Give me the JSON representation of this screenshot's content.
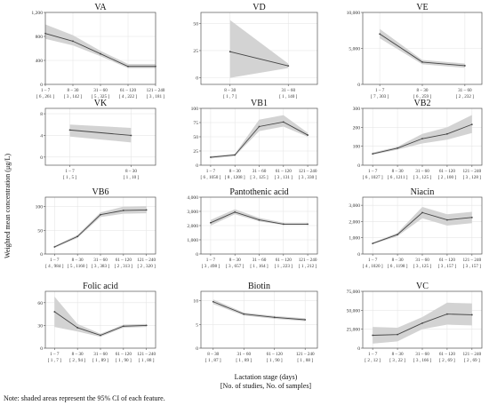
{
  "figure": {
    "ylabel": "Weighted mean concentration (μg/L)",
    "xlabel_line1": "Lactation stage (days)",
    "xlabel_line2": "[No. of studies, No. of samples]",
    "note": "Note: shaded areas represent the 95% CI of each feature.",
    "colors": {
      "line": "#444444",
      "band": "#d3d3d3",
      "grid": "#e6e6e6",
      "panel_border": "#555555"
    }
  },
  "chart_data": [
    {
      "type": "line",
      "title": "VA",
      "categories": [
        "1 – 7",
        "8 – 30",
        "31 – 60",
        "61 – 120",
        "121 – 240"
      ],
      "counts": [
        "[ 6 , 261 ]",
        "[ 3 , 142 ]",
        "[ 5 , 325 ]",
        "[ 4 , 222 ]",
        "[ 3 , 181 ]"
      ],
      "x": [
        1,
        2,
        3,
        4,
        5
      ],
      "xlim": [
        1,
        5
      ],
      "y": [
        850,
        720,
        510,
        300,
        300
      ],
      "lower": [
        760,
        650,
        470,
        270,
        270
      ],
      "upper": [
        1000,
        820,
        560,
        340,
        340
      ],
      "ylim": [
        0,
        1200
      ],
      "yticks": [
        0,
        400,
        800,
        1200
      ],
      "ytick_labels": [
        "0",
        "400",
        "800",
        "1,200"
      ]
    },
    {
      "type": "line",
      "title": "VD",
      "categories": [
        "8 – 30",
        "31 – 60"
      ],
      "counts": [
        "[ 1 , 7 ]",
        "[ 1 , 140 ]"
      ],
      "x": [
        2,
        3
      ],
      "xlim": [
        1.5,
        3.5
      ],
      "y": [
        24,
        11
      ],
      "lower": [
        0,
        9
      ],
      "upper": [
        53,
        13
      ],
      "ylim": [
        -6,
        60
      ],
      "yticks": [
        0,
        25,
        50
      ],
      "ytick_labels": [
        "0",
        "25",
        "50"
      ]
    },
    {
      "type": "line",
      "title": "VE",
      "categories": [
        "1 – 7",
        "8 – 30",
        "31 – 60"
      ],
      "counts": [
        "[ 7 , 303 ]",
        "[ 6 , 259 ]",
        "[ 2 , 232 ]"
      ],
      "x": [
        1,
        2,
        3
      ],
      "xlim": [
        0.6,
        3.4
      ],
      "y": [
        7000,
        3100,
        2600
      ],
      "lower": [
        6400,
        2800,
        2300
      ],
      "upper": [
        7700,
        3400,
        2900
      ],
      "ylim": [
        0,
        10000
      ],
      "yticks": [
        0,
        5000,
        10000
      ],
      "ytick_labels": [
        "0",
        "5,000",
        "10,000"
      ]
    },
    {
      "type": "line",
      "title": "VK",
      "categories": [
        "1 – 7",
        "8 – 30"
      ],
      "counts": [
        "[ 1 , 5 ]",
        "[ 1 , 10 ]"
      ],
      "x": [
        1,
        2
      ],
      "xlim": [
        0.6,
        2.4
      ],
      "y": [
        5.0,
        4.0
      ],
      "lower": [
        3.8,
        2.7
      ],
      "upper": [
        6.0,
        5.4
      ],
      "ylim": [
        -1.5,
        9
      ],
      "yticks": [
        0,
        4,
        8
      ],
      "ytick_labels": [
        "0",
        "4",
        "8"
      ]
    },
    {
      "type": "line",
      "title": "VB1",
      "categories": [
        "1 – 7",
        "8 – 30",
        "31 – 60",
        "61 – 120",
        "121 – 240"
      ],
      "counts": [
        "[ 6 , 1050 ]",
        "[ 8 , 1208 ]",
        "[ 3 , 125 ]",
        "[ 3 , 131 ]",
        "[ 3 , 330 ]"
      ],
      "x": [
        1,
        2,
        3,
        4,
        5
      ],
      "xlim": [
        0.6,
        5.4
      ],
      "y": [
        14,
        18,
        68,
        76,
        53
      ],
      "lower": [
        12,
        16,
        60,
        68,
        50
      ],
      "upper": [
        16,
        20,
        80,
        88,
        57
      ],
      "ylim": [
        0,
        100
      ],
      "yticks": [
        0,
        25,
        50,
        75,
        100
      ],
      "ytick_labels": [
        "0",
        "25",
        "50",
        "75",
        "100"
      ]
    },
    {
      "type": "line",
      "title": "VB2",
      "categories": [
        "1 – 7",
        "8 – 30",
        "31 – 60",
        "61 – 120",
        "121 – 240"
      ],
      "counts": [
        "[ 6 , 1027 ]",
        "[ 6 , 1211 ]",
        "[ 3 , 125 ]",
        "[ 2 , 100 ]",
        "[ 3 , 128 ]"
      ],
      "x": [
        1,
        2,
        3,
        4,
        5
      ],
      "xlim": [
        0.6,
        5.4
      ],
      "y": [
        60,
        90,
        140,
        165,
        215
      ],
      "lower": [
        55,
        82,
        115,
        135,
        170
      ],
      "upper": [
        66,
        98,
        165,
        200,
        265
      ],
      "ylim": [
        0,
        300
      ],
      "yticks": [
        0,
        100,
        200,
        300
      ],
      "ytick_labels": [
        "0",
        "100",
        "200",
        "300"
      ]
    },
    {
      "type": "line",
      "title": "VB6",
      "categories": [
        "1 – 7",
        "8 – 30",
        "31 – 60",
        "61 – 120",
        "121 – 240"
      ],
      "counts": [
        "[ 4 , 984 ]",
        "[ 5 , 1160 ]",
        "[ 3 , 383 ]",
        "[ 2 , 313 ]",
        "[ 2 , 320 ]"
      ],
      "x": [
        1,
        2,
        3,
        4,
        5
      ],
      "xlim": [
        0.6,
        5.4
      ],
      "y": [
        15,
        37,
        83,
        92,
        93
      ],
      "lower": [
        13,
        34,
        78,
        85,
        86
      ],
      "upper": [
        17,
        40,
        88,
        100,
        101
      ],
      "ylim": [
        0,
        120
      ],
      "yticks": [
        0,
        50,
        100
      ],
      "ytick_labels": [
        "0",
        "50",
        "100"
      ]
    },
    {
      "type": "line",
      "title": "Pantothenic acid",
      "categories": [
        "1 – 7",
        "8 – 30",
        "31 – 60",
        "61 – 120",
        "121 – 240"
      ],
      "counts": [
        "[ 3 , 498 ]",
        "[ 3 , 657 ]",
        "[ 1 , 164 ]",
        "[ 1 , 223 ]",
        "[ 1 , 212 ]"
      ],
      "x": [
        1,
        2,
        3,
        4,
        5
      ],
      "xlim": [
        0.6,
        5.4
      ],
      "y": [
        2200,
        2950,
        2400,
        2100,
        2100
      ],
      "lower": [
        2000,
        2800,
        2300,
        2050,
        2050
      ],
      "upper": [
        2400,
        3150,
        2550,
        2200,
        2200
      ],
      "ylim": [
        0,
        4000
      ],
      "yticks": [
        0,
        1000,
        2000,
        3000,
        4000
      ],
      "ytick_labels": [
        "0",
        "1,000",
        "2,000",
        "3,000",
        "4,000"
      ]
    },
    {
      "type": "line",
      "title": "Niacin",
      "categories": [
        "1 – 7",
        "8 – 30",
        "31 – 60",
        "61 – 120",
        "121 – 240"
      ],
      "counts": [
        "[ 4 , 1020 ]",
        "[ 6 , 1198 ]",
        "[ 3 , 125 ]",
        "[ 3 , 157 ]",
        "[ 3 , 157 ]"
      ],
      "x": [
        1,
        2,
        3,
        4,
        5
      ],
      "xlim": [
        0.6,
        5.4
      ],
      "y": [
        650,
        1200,
        2550,
        2100,
        2250
      ],
      "lower": [
        600,
        1100,
        2200,
        1750,
        1900
      ],
      "upper": [
        700,
        1300,
        2900,
        2450,
        2600
      ],
      "ylim": [
        0,
        3500
      ],
      "yticks": [
        0,
        1000,
        2000,
        3000
      ],
      "ytick_labels": [
        "0",
        "1,000",
        "2,000",
        "3,000"
      ]
    },
    {
      "type": "line",
      "title": "Folic acid",
      "categories": [
        "1 – 7",
        "8 – 30",
        "31 – 60",
        "61 – 120",
        "121 – 240"
      ],
      "counts": [
        "[ 1 , 7 ]",
        "[ 2 , 94 ]",
        "[ 1 , 89 ]",
        "[ 1 , 90 ]",
        "[ 1 , 88 ]"
      ],
      "x": [
        1,
        2,
        3,
        4,
        5
      ],
      "xlim": [
        0.6,
        5.4
      ],
      "y": [
        48,
        27,
        17,
        29,
        30
      ],
      "lower": [
        28,
        22,
        15,
        27,
        28
      ],
      "upper": [
        68,
        32,
        19,
        31,
        32
      ],
      "ylim": [
        0,
        75
      ],
      "yticks": [
        0,
        30,
        60
      ],
      "ytick_labels": [
        "0",
        "30",
        "60"
      ]
    },
    {
      "type": "line",
      "title": "Biotin",
      "categories": [
        "8 – 30",
        "31 – 60",
        "61 – 120",
        "121 – 240"
      ],
      "counts": [
        "[ 1 , 87 ]",
        "[ 1 , 89 ]",
        "[ 1 , 90 ]",
        "[ 1 , 88 ]"
      ],
      "x": [
        2,
        3,
        4,
        5
      ],
      "xlim": [
        1.6,
        5.4
      ],
      "y": [
        9.8,
        7.2,
        6.5,
        6.0
      ],
      "lower": [
        9.3,
        6.9,
        6.2,
        5.7
      ],
      "upper": [
        10.3,
        7.5,
        6.8,
        6.3
      ],
      "ylim": [
        0,
        12
      ],
      "yticks": [
        0,
        5,
        10
      ],
      "ytick_labels": [
        "0",
        "5",
        "10"
      ]
    },
    {
      "type": "line",
      "title": "VC",
      "categories": [
        "1 – 7",
        "8 – 30",
        "31 – 60",
        "61 – 120",
        "121 – 240"
      ],
      "counts": [
        "[ 2 , 12 ]",
        "[ 3 , 22 ]",
        "[ 3 , 166 ]",
        "[ 2 , 69 ]",
        "[ 2 , 69 ]"
      ],
      "x": [
        1,
        2,
        3,
        4,
        5
      ],
      "xlim": [
        0.6,
        5.4
      ],
      "y": [
        17000,
        18000,
        33000,
        45000,
        44000
      ],
      "lower": [
        6000,
        9000,
        25000,
        31000,
        30000
      ],
      "upper": [
        28000,
        27000,
        41000,
        60000,
        59000
      ],
      "ylim": [
        0,
        75000
      ],
      "yticks": [
        0,
        25000,
        50000,
        75000
      ],
      "ytick_labels": [
        "0",
        "25,000",
        "50,000",
        "75,000"
      ]
    }
  ]
}
